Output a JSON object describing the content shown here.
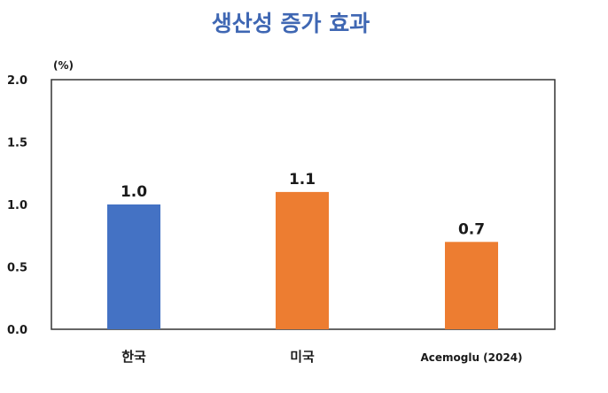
{
  "chart_data": {
    "type": "bar",
    "title": "생산성 증가 효과",
    "unit": "(%)",
    "categories": [
      "한국",
      "미국",
      "Acemoglu (2024)"
    ],
    "values": [
      1.0,
      1.1,
      0.7
    ],
    "data_labels": [
      "1.0",
      "1.1",
      "0.7"
    ],
    "bar_colors": [
      "#4472C4",
      "#ED7D31",
      "#ED7D31"
    ],
    "title_color": "#3F67B3",
    "ylim": [
      0,
      2.0
    ],
    "yticks": [
      0.0,
      0.5,
      1.0,
      1.5,
      2.0
    ],
    "ytick_labels": [
      "0.0",
      "0.5",
      "1.0",
      "1.5",
      "2.0"
    ],
    "grid": false,
    "legend": "none"
  }
}
